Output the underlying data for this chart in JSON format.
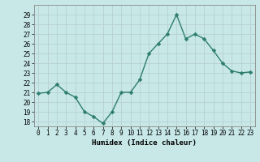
{
  "x": [
    0,
    1,
    2,
    3,
    4,
    5,
    6,
    7,
    8,
    9,
    10,
    11,
    12,
    13,
    14,
    15,
    16,
    17,
    18,
    19,
    20,
    21,
    22,
    23
  ],
  "y": [
    20.9,
    21.0,
    21.8,
    21.0,
    20.5,
    19.0,
    18.5,
    17.8,
    19.0,
    21.0,
    21.0,
    22.3,
    25.0,
    26.0,
    27.0,
    29.0,
    26.5,
    27.0,
    26.5,
    25.3,
    24.0,
    23.2,
    23.0,
    23.1
  ],
  "line_color": "#2d7d6e",
  "marker": "D",
  "marker_size": 2.5,
  "bg_color": "#c8e8e8",
  "grid_color": "#b8d0d0",
  "xlabel": "Humidex (Indice chaleur)",
  "ylim": [
    17.5,
    30.0
  ],
  "xlim": [
    -0.5,
    23.5
  ],
  "yticks": [
    18,
    19,
    20,
    21,
    22,
    23,
    24,
    25,
    26,
    27,
    28,
    29
  ],
  "xticks": [
    0,
    1,
    2,
    3,
    4,
    5,
    6,
    7,
    8,
    9,
    10,
    11,
    12,
    13,
    14,
    15,
    16,
    17,
    18,
    19,
    20,
    21,
    22,
    23
  ],
  "tick_fontsize": 5.5,
  "xlabel_fontsize": 6.5,
  "line_width": 1.0
}
